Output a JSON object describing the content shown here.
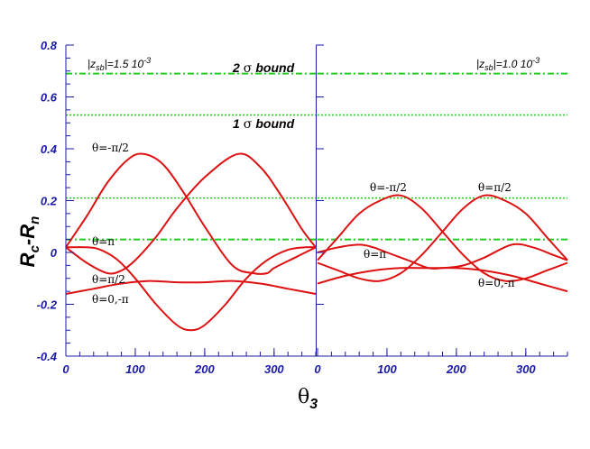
{
  "chart_data": {
    "type": "line",
    "y_axis": {
      "label": "R",
      "label_sub1": "c",
      "label_mid": "-R",
      "label_sub2": "n",
      "ylim": [
        -0.4,
        0.8
      ],
      "ticks": [
        "0.8",
        "0.6",
        "0.4",
        "0.2",
        "0",
        "-0.2",
        "-0.4"
      ]
    },
    "x_axis": {
      "label": "θ",
      "label_sub": "3",
      "xlim": [
        0,
        360
      ],
      "ticks": [
        "0",
        "100",
        "200",
        "300"
      ]
    },
    "grid": false,
    "panels": [
      {
        "annotation": {
          "prefix": "|z",
          "sub": "sb",
          "mid": "|=1.5 10",
          "sup": "-3"
        },
        "bounds": [
          {
            "label_num": "2",
            "label_sigma": "σ",
            "label_word": "bound",
            "value": 0.69,
            "style": "dash-dot"
          },
          {
            "label_num": "1",
            "label_sigma": "σ",
            "label_word": "bound",
            "value": 0.53,
            "style": "dotted"
          },
          {
            "value": 0.21,
            "style": "dotted"
          },
          {
            "value": 0.05,
            "style": "dash-dot"
          }
        ],
        "series": [
          {
            "label": "θ=-π/2",
            "x": [
              0,
              30,
              60,
              90,
              112,
              140,
              170,
              200,
              240,
              270,
              290,
              300,
              330,
              360
            ],
            "y": [
              0.02,
              0.14,
              0.27,
              0.36,
              0.38,
              0.34,
              0.23,
              0.1,
              -0.05,
              -0.08,
              -0.08,
              -0.06,
              -0.02,
              0.02
            ]
          },
          {
            "label": "θ=π/2",
            "x": [
              0,
              30,
              60,
              80,
              100,
              130,
              160,
              200,
              248,
              280,
              310,
              340,
              360
            ],
            "y": [
              0.02,
              -0.04,
              -0.08,
              -0.07,
              -0.03,
              0.06,
              0.17,
              0.29,
              0.38,
              0.33,
              0.22,
              0.09,
              0.02
            ]
          },
          {
            "label": "θ=π",
            "x": [
              0,
              30,
              50,
              75,
              100,
              130,
              160,
              180,
              200,
              230,
              260,
              290,
              320,
              345,
              360
            ],
            "y": [
              0.02,
              0.02,
              0.01,
              -0.03,
              -0.1,
              -0.2,
              -0.28,
              -0.3,
              -0.28,
              -0.2,
              -0.1,
              -0.03,
              0.01,
              0.02,
              0.02
            ]
          },
          {
            "label": "θ=0,-π",
            "x": [
              0,
              40,
              80,
              120,
              160,
              200,
              240,
              280,
              320,
              360
            ],
            "y": [
              -0.16,
              -0.14,
              -0.12,
              -0.11,
              -0.115,
              -0.115,
              -0.11,
              -0.12,
              -0.14,
              -0.16
            ]
          }
        ]
      },
      {
        "annotation": {
          "prefix": "|z",
          "sub": "sb",
          "mid": "|=1.0 10",
          "sup": "-3"
        },
        "bounds": [
          {
            "value": 0.69,
            "style": "dash-dot"
          },
          {
            "value": 0.53,
            "style": "dotted"
          },
          {
            "value": 0.21,
            "style": "dotted"
          },
          {
            "value": 0.05,
            "style": "dash-dot"
          }
        ],
        "series": [
          {
            "label": "θ=-π/2",
            "x": [
              0,
              30,
              60,
              90,
              120,
              150,
              180,
              210,
              240,
              270,
              300,
              330,
              360
            ],
            "y": [
              -0.03,
              0.06,
              0.15,
              0.2,
              0.22,
              0.17,
              0.08,
              -0.01,
              -0.08,
              -0.11,
              -0.1,
              -0.07,
              -0.04
            ]
          },
          {
            "label": "θ=π/2",
            "x": [
              0,
              30,
              60,
              90,
              120,
              150,
              180,
              210,
              240,
              270,
              300,
              330,
              360
            ],
            "y": [
              -0.04,
              -0.07,
              -0.1,
              -0.11,
              -0.08,
              -0.01,
              0.08,
              0.17,
              0.22,
              0.2,
              0.15,
              0.06,
              -0.03
            ]
          },
          {
            "label": "θ=π",
            "x": [
              0,
              30,
              60,
              80,
              100,
              130,
              160,
              180,
              210,
              240,
              280,
              310,
              340,
              360
            ],
            "y": [
              0.0,
              0.02,
              0.03,
              0.02,
              0.0,
              -0.03,
              -0.06,
              -0.06,
              -0.05,
              -0.02,
              0.03,
              0.02,
              -0.01,
              -0.03
            ]
          },
          {
            "label": "θ=0,-π",
            "x": [
              0,
              40,
              80,
              120,
              160,
              200,
              240,
              280,
              320,
              360
            ],
            "y": [
              -0.12,
              -0.09,
              -0.07,
              -0.06,
              -0.06,
              -0.06,
              -0.07,
              -0.09,
              -0.12,
              -0.15
            ]
          }
        ]
      }
    ],
    "colors": {
      "curve": "#dd1111",
      "bound": "#22cc22",
      "axis": "#1a1aa6",
      "tick_label": "#1a1aa6"
    }
  }
}
